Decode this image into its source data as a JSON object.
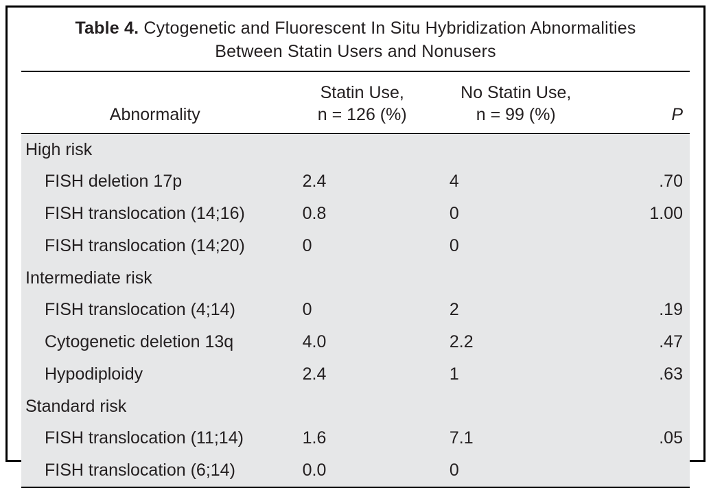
{
  "title": {
    "lead": "Table 4.",
    "rest_line1": " Cytogenetic and Fluorescent In Situ Hybridization Abnormalities",
    "line2": "Between Statin Users and Nonusers"
  },
  "columns": {
    "c1": "Abnormality",
    "c2_line1": "Statin Use,",
    "c2_line2": "n = 126 (%)",
    "c3_line1": "No Statin Use,",
    "c3_line2": "n = 99 (%)",
    "c4": "P"
  },
  "sections": [
    {
      "name": "High risk",
      "rows": [
        {
          "label": "FISH deletion 17p",
          "statin": "2.4",
          "nostatin": "4",
          "p": ".70"
        },
        {
          "label": "FISH translocation (14;16)",
          "statin": "0.8",
          "nostatin": "0",
          "p": "1.00"
        },
        {
          "label": "FISH translocation (14;20)",
          "statin": "0",
          "nostatin": "0",
          "p": ""
        }
      ]
    },
    {
      "name": "Intermediate risk",
      "rows": [
        {
          "label": "FISH translocation (4;14)",
          "statin": "0",
          "nostatin": "2",
          "p": ".19"
        },
        {
          "label": "Cytogenetic deletion 13q",
          "statin": "4.0",
          "nostatin": "2.2",
          "p": ".47"
        },
        {
          "label": "Hypodiploidy",
          "statin": "2.4",
          "nostatin": "1",
          "p": ".63"
        }
      ]
    },
    {
      "name": "Standard risk",
      "rows": [
        {
          "label": "FISH translocation (11;14)",
          "statin": "1.6",
          "nostatin": "7.1",
          "p": ".05"
        },
        {
          "label": "FISH translocation (6;14)",
          "statin": "0.0",
          "nostatin": "0",
          "p": ""
        }
      ]
    }
  ],
  "style": {
    "frame_border_color": "#000000",
    "row_bg": "#e6e7e8",
    "text_color": "#231f20",
    "font_family": "Helvetica Neue, Helvetica, Arial, sans-serif",
    "title_fontsize_pt": 19,
    "header_fontsize_pt": 19,
    "body_fontsize_pt": 19,
    "col_widths_pct": [
      40,
      22,
      24,
      14
    ]
  }
}
